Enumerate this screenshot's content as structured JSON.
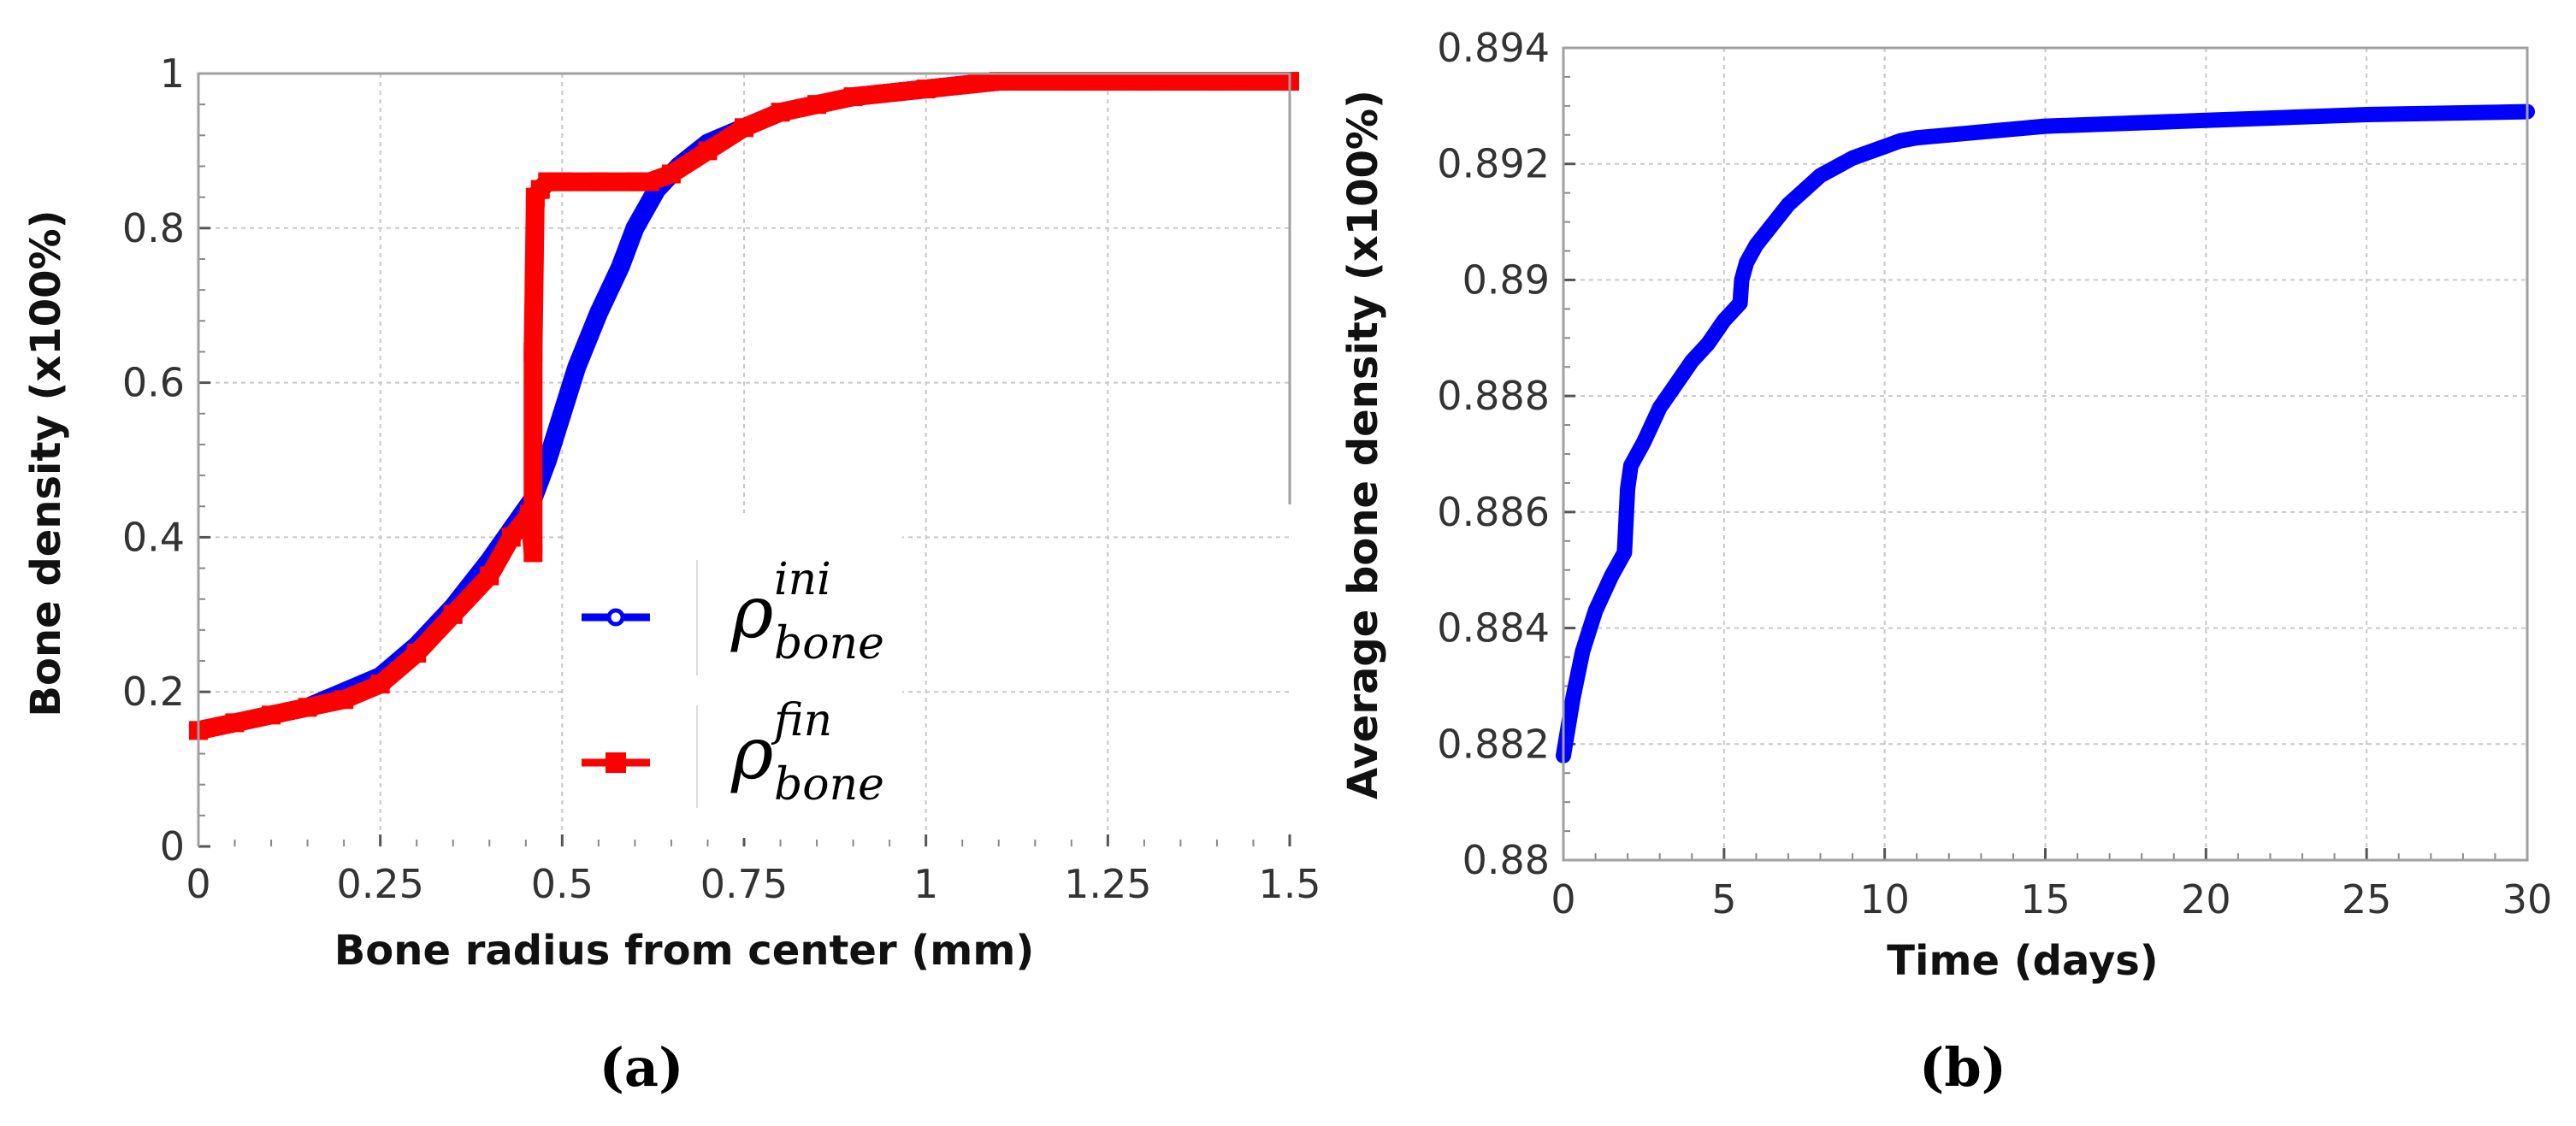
{
  "chart_data": [
    {
      "panel": "(a)",
      "type": "line",
      "xlabel": "Bone radius from center (mm)",
      "ylabel": "Bone density (x100%)",
      "xlim": [
        0,
        1.5
      ],
      "ylim": [
        0,
        1
      ],
      "x_ticks": [
        "0",
        "0.25",
        "0.5",
        "0.75",
        "1",
        "1.25",
        "1.5"
      ],
      "y_ticks": [
        "0",
        "0.2",
        "0.4",
        "0.6",
        "0.8",
        "1"
      ],
      "grid": true,
      "legend_placement": "center",
      "series": [
        {
          "name": "ρ_bone^ini",
          "legend_symbol": "ρ",
          "legend_superscript": "ini",
          "legend_subscript": "bone",
          "color": "#0000ff",
          "marker": "circle",
          "x": [
            0,
            0.05,
            0.1,
            0.15,
            0.2,
            0.25,
            0.3,
            0.35,
            0.4,
            0.43,
            0.46,
            0.48,
            0.5,
            0.52,
            0.55,
            0.58,
            0.6,
            0.63,
            0.66,
            0.7,
            0.75,
            0.8,
            0.85,
            0.9,
            1.0,
            1.1,
            1.2,
            1.3,
            1.4,
            1.5
          ],
          "y": [
            0.15,
            0.16,
            0.17,
            0.18,
            0.2,
            0.22,
            0.26,
            0.31,
            0.37,
            0.41,
            0.45,
            0.5,
            0.56,
            0.62,
            0.69,
            0.75,
            0.8,
            0.85,
            0.88,
            0.91,
            0.93,
            0.95,
            0.96,
            0.97,
            0.98,
            0.99,
            0.99,
            0.99,
            0.99,
            0.99
          ]
        },
        {
          "name": "ρ_bone^fin",
          "legend_symbol": "ρ",
          "legend_superscript": "fin",
          "legend_subscript": "bone",
          "color": "#ff0000",
          "marker": "square",
          "x": [
            0,
            0.05,
            0.1,
            0.15,
            0.2,
            0.25,
            0.3,
            0.35,
            0.4,
            0.43,
            0.455,
            0.46,
            0.46,
            0.463,
            0.47,
            0.48,
            0.5,
            0.55,
            0.6,
            0.62,
            0.65,
            0.7,
            0.75,
            0.8,
            0.85,
            0.9,
            1.0,
            1.1,
            1.2,
            1.3,
            1.4,
            1.5
          ],
          "y": [
            0.15,
            0.16,
            0.17,
            0.18,
            0.19,
            0.21,
            0.25,
            0.3,
            0.35,
            0.4,
            0.43,
            0.38,
            0.64,
            0.84,
            0.85,
            0.86,
            0.86,
            0.86,
            0.86,
            0.86,
            0.87,
            0.9,
            0.93,
            0.95,
            0.96,
            0.97,
            0.98,
            0.99,
            0.99,
            0.99,
            0.99,
            0.99
          ]
        }
      ]
    },
    {
      "panel": "(b)",
      "type": "line",
      "xlabel": "Time (days)",
      "ylabel": "Average bone density (x100%)",
      "xlim": [
        0,
        30
      ],
      "ylim": [
        0.88,
        0.894
      ],
      "x_ticks": [
        "0",
        "5",
        "10",
        "15",
        "20",
        "25",
        "30"
      ],
      "y_ticks": [
        "0.88",
        "0.882",
        "0.884",
        "0.886",
        "0.888",
        "0.89",
        "0.892",
        "0.894"
      ],
      "grid": true,
      "series": [
        {
          "color": "#0000ff",
          "x": [
            0,
            0.3,
            0.6,
            1.0,
            1.5,
            1.9,
            2.0,
            2.1,
            2.5,
            3.0,
            3.5,
            4.0,
            4.5,
            5.0,
            5.5,
            5.55,
            5.7,
            6.0,
            7.0,
            8.0,
            9.0,
            10.0,
            10.5,
            11.0,
            12.0,
            15.0,
            20.0,
            25.0,
            30.0
          ],
          "y": [
            0.8818,
            0.8828,
            0.8836,
            0.8843,
            0.8849,
            0.8853,
            0.8864,
            0.8868,
            0.8872,
            0.8878,
            0.8882,
            0.8886,
            0.8889,
            0.8893,
            0.8896,
            0.89,
            0.8903,
            0.8906,
            0.8913,
            0.8918,
            0.8921,
            0.8923,
            0.8924,
            0.89245,
            0.8925,
            0.89265,
            0.89275,
            0.89285,
            0.8929
          ]
        }
      ]
    }
  ],
  "labels": {
    "panel_a": "(a)",
    "panel_b": "(b)"
  }
}
